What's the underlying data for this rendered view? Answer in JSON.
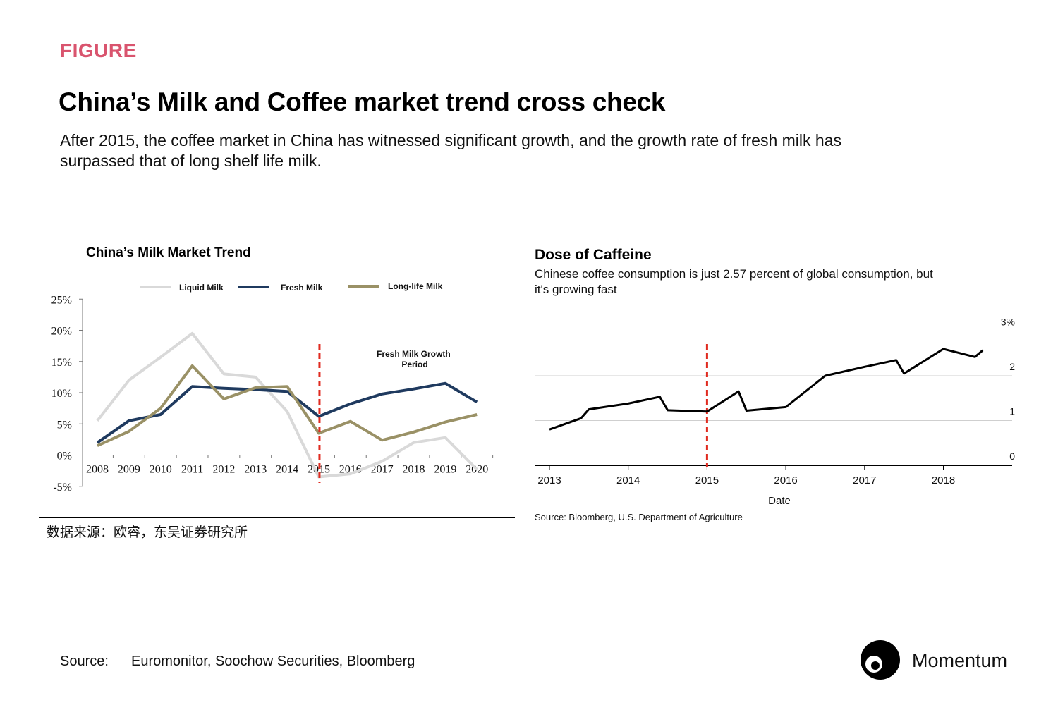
{
  "header": {
    "label": "FIGURE",
    "title": "China’s Milk and Coffee market trend cross check",
    "subtitle": "After 2015, the coffee market in China has witnessed significant growth, and the growth rate of fresh milk has surpassed that of long shelf life milk."
  },
  "footer": {
    "source_label": "Source:",
    "source_text": "Euromonitor, Soochow Securities, Bloomberg",
    "brand": "Momentum"
  },
  "colors": {
    "label": "#d9546e",
    "liquid_milk": "#d9d9d9",
    "fresh_milk": "#1f3a5f",
    "long_life_milk": "#9a9166",
    "marker": "#e02a1f",
    "coffee": "#000000"
  },
  "chart_data": [
    {
      "type": "line",
      "title": "China’s Milk Market  Trend",
      "x": [
        "2008",
        "2009",
        "2010",
        "2011",
        "2012",
        "2013",
        "2014",
        "2015",
        "2016",
        "2017",
        "2018",
        "2019",
        "2020"
      ],
      "yticks": [
        "25%",
        "20%",
        "15%",
        "10%",
        "5%",
        "0%",
        "-5%"
      ],
      "ylim": [
        -5,
        25
      ],
      "legend": "top",
      "series": [
        {
          "name": "Liquid Milk",
          "values": [
            5.5,
            12,
            15.7,
            19.5,
            13,
            12.5,
            7,
            -3.5,
            -3,
            -1,
            2,
            2.8,
            -2.3
          ]
        },
        {
          "name": "Fresh Milk",
          "values": [
            2,
            5.5,
            6.5,
            11,
            10.7,
            10.5,
            10.2,
            6.2,
            8.2,
            9.8,
            10.6,
            11.5,
            8.5
          ]
        },
        {
          "name": "Long-life Milk",
          "values": [
            1.5,
            3.8,
            7.5,
            14.3,
            9,
            10.8,
            11,
            3.5,
            5.4,
            2.4,
            3.7,
            5.3,
            6.5
          ]
        }
      ],
      "marker_x": "2015",
      "annotation": "Fresh Milk Growth\nPeriod",
      "source": "数据来源：欧睿，东吴证券研究所"
    },
    {
      "type": "line",
      "title": "Dose of Caffeine",
      "subtitle": "Chinese coffee consumption is just 2.57 percent of global consumption, but it's growing fast",
      "xlabel": "Date",
      "xticks": [
        "2013",
        "2014",
        "2015",
        "2016",
        "2017",
        "2018"
      ],
      "yticks": [
        "3%",
        "2",
        "1",
        "0"
      ],
      "ylim": [
        0,
        3
      ],
      "marker_x": 2015,
      "x": [
        2013,
        2013.4,
        2013.5,
        2014,
        2014.4,
        2014.5,
        2015,
        2015.4,
        2015.5,
        2016,
        2016.5,
        2017,
        2017.4,
        2017.5,
        2018,
        2018.4,
        2018.5
      ],
      "values": [
        0.8,
        1.05,
        1.25,
        1.38,
        1.53,
        1.23,
        1.2,
        1.65,
        1.22,
        1.3,
        2.0,
        2.2,
        2.35,
        2.05,
        2.6,
        2.42,
        2.57
      ],
      "source": "Source: Bloomberg, U.S. Department of Agriculture"
    }
  ]
}
